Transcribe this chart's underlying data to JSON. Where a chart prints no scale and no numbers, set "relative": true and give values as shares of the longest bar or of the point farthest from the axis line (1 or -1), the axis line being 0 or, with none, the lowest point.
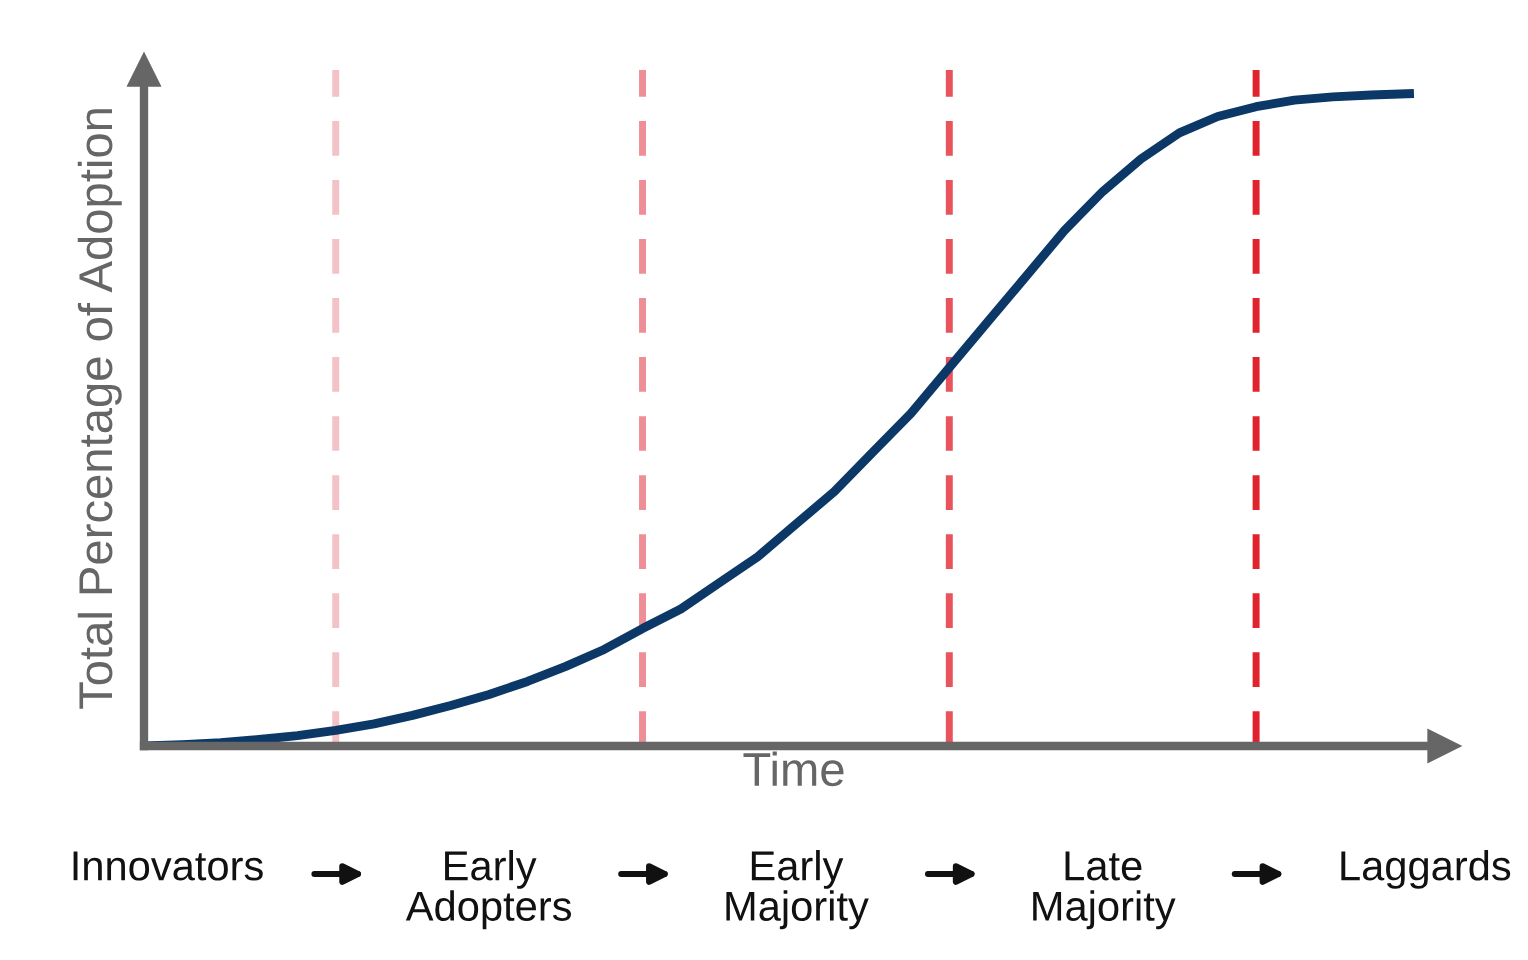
{
  "chart_data": {
    "type": "line",
    "relative": true,
    "xlabel": "Time",
    "ylabel": "Total Percentage of Adoption",
    "categories": [
      null,
      null,
      null,
      null,
      null,
      null,
      null,
      null,
      null,
      null,
      null,
      null,
      null,
      null,
      null,
      null,
      null,
      null,
      null,
      null,
      null,
      null,
      null,
      null,
      null,
      null,
      null,
      null,
      null,
      null,
      null,
      null,
      null,
      null
    ],
    "series": [
      {
        "color": "#0b3866",
        "values": [
          0,
          0.002,
          0.005,
          0.01,
          0.016,
          0.024,
          0.034,
          0.047,
          0.062,
          0.079,
          0.099,
          0.122,
          0.148,
          0.18,
          0.21,
          0.25,
          0.29,
          0.34,
          0.39,
          0.45,
          0.51,
          0.58,
          0.65,
          0.72,
          0.79,
          0.85,
          0.9,
          0.94,
          0.965,
          0.98,
          0.99,
          0.995,
          0.998,
          1.0
        ]
      }
    ],
    "annotations": [
      "Innovators",
      "Early\nAdopters",
      "Early\nMajority",
      "Late\nMajority",
      "Laggards"
    ],
    "legend": false,
    "marker": "none",
    "line_style": "solid"
  }
}
